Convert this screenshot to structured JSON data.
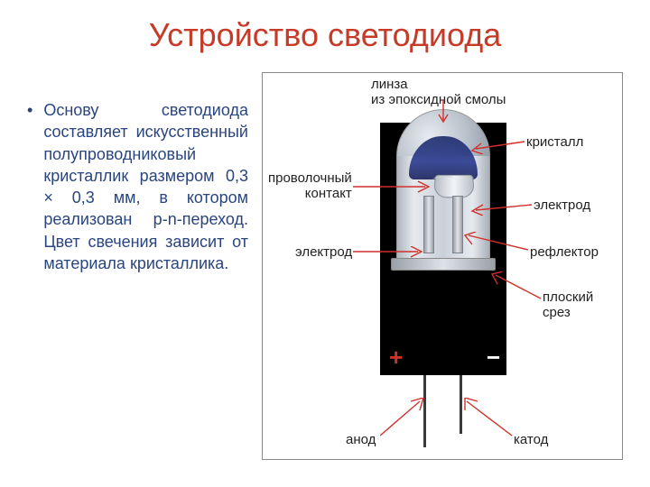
{
  "title": {
    "text": "Устройство светодиода",
    "color": "#c63a28"
  },
  "paragraph": {
    "bullet": "•",
    "text": "Основу светодиода составляет искусственный полупроводниковый кристаллик размером 0,3 × 0,3 мм, в котором реализован p-n-переход. Цвет свечения зависит от материала кристаллика.",
    "color": "#2a457e"
  },
  "diagram": {
    "background_color": "#000000",
    "led_colors": {
      "dome_highlight": "#e8ecf1",
      "dome_mid": "#b8c0ca",
      "dome_edge": "#7d8896",
      "body_light": "#e6eaef",
      "body_shadow": "#a8afb9",
      "crystal_blue_top": "#1b2a6b",
      "crystal_blue_mid": "#2a3a8e",
      "reflector_light": "#f2f4f7",
      "reflector_shadow": "#b8bec6",
      "lead": "#3a3a3a"
    },
    "polarity_plus": {
      "symbol": "+",
      "color": "#d12f2a"
    },
    "polarity_minus": {
      "symbol": "−",
      "color": "#ffffff"
    },
    "arrow_color": "#d12f2a",
    "label_color": "#222222",
    "labels": {
      "lens": "линза\nиз эпоксидной смолы",
      "crystal": "кристалл",
      "wire": "проволочный\nконтакт",
      "electrode_r": "электрод",
      "electrode_l": "электрод",
      "reflector": "рефлектор",
      "flat": "плоский\nсрез",
      "anode": "анод",
      "cathode": "катод"
    }
  }
}
